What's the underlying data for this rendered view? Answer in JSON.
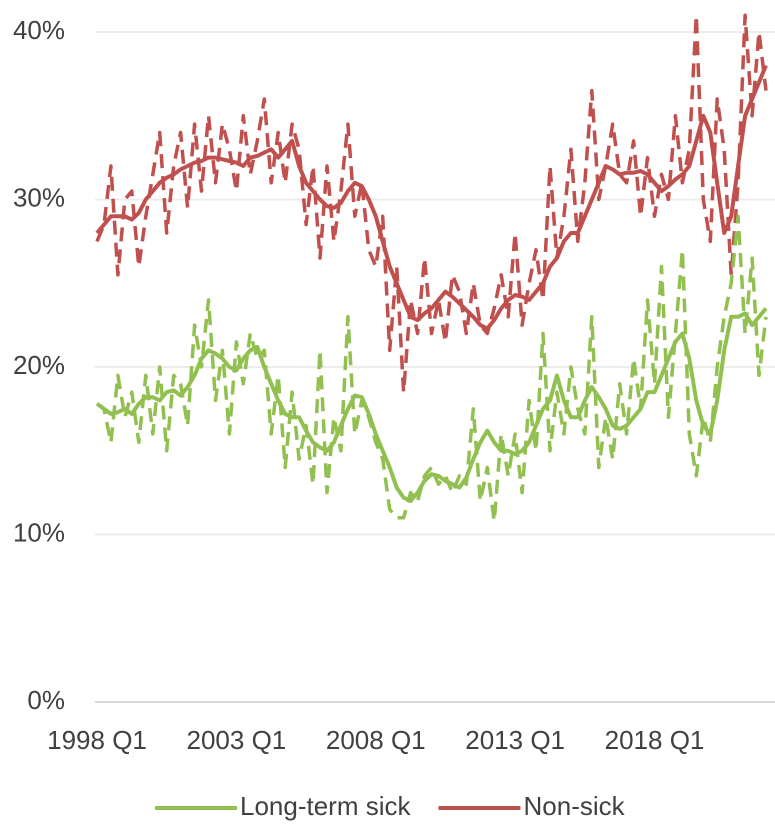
{
  "chart_data": {
    "type": "line",
    "categories": [
      "1998 Q1",
      null,
      null,
      null,
      null,
      null,
      null,
      null,
      null,
      null,
      null,
      null,
      null,
      null,
      null,
      null,
      null,
      null,
      null,
      null,
      "2003 Q1",
      null,
      null,
      null,
      null,
      null,
      null,
      null,
      null,
      null,
      null,
      null,
      null,
      null,
      null,
      null,
      null,
      null,
      null,
      null,
      "2008 Q1",
      null,
      null,
      null,
      null,
      null,
      null,
      null,
      null,
      null,
      null,
      null,
      null,
      null,
      null,
      null,
      null,
      null,
      null,
      null,
      "2013 Q1",
      null,
      null,
      null,
      null,
      null,
      null,
      null,
      null,
      null,
      null,
      null,
      null,
      null,
      null,
      null,
      null,
      null,
      null,
      null,
      "2018 Q1",
      null,
      null,
      null,
      null,
      null,
      null,
      null,
      null,
      null,
      null,
      null,
      null,
      null,
      null,
      null,
      null
    ],
    "ylim": [
      0,
      42
    ],
    "yticks": [
      {
        "value": 0,
        "label": "0%"
      },
      {
        "value": 10,
        "label": "10%"
      },
      {
        "value": 20,
        "label": "20%"
      },
      {
        "value": 30,
        "label": "30%"
      },
      {
        "value": 40,
        "label": "40%"
      }
    ],
    "grid": true,
    "series": [
      {
        "name": "Long-term sick",
        "color": "#92c050",
        "style": "solid",
        "values": [
          17.8,
          17.5,
          17.2,
          17.3,
          17.5,
          17.2,
          17.8,
          18.2,
          18.2,
          18,
          18.5,
          18.6,
          18.3,
          18.8,
          19.5,
          20.5,
          21,
          20.8,
          20.5,
          20,
          19.8,
          20.5,
          21,
          21.2,
          20,
          19,
          18,
          17.2,
          17,
          17,
          16.2,
          15.5,
          15.2,
          15,
          15.5,
          16.5,
          17.5,
          18.3,
          18.2,
          17.2,
          16,
          15,
          14,
          12.8,
          12.2,
          12,
          12.5,
          13.2,
          13.6,
          13.5,
          13.2,
          13,
          12.8,
          13.4,
          14.5,
          15.5,
          16.2,
          15.5,
          15,
          15,
          14.8,
          15,
          15.5,
          16.5,
          17.5,
          18,
          19.5,
          18,
          17,
          17,
          18,
          18.8,
          18.2,
          17.5,
          16.5,
          16.3,
          16.5,
          17,
          17.5,
          18.5,
          18.5,
          19.5,
          20.5,
          21.5,
          22,
          20.5,
          18,
          16.5,
          16,
          18,
          21,
          23,
          23,
          23.2,
          22.5,
          23,
          23.5
        ]
      },
      {
        "name": "Non-sick",
        "color": "#c0504d",
        "style": "solid",
        "values": [
          28,
          28.5,
          29,
          29,
          29,
          28.8,
          29.2,
          30,
          30.5,
          31,
          31.3,
          31.5,
          31.8,
          32,
          32.2,
          32.3,
          32.5,
          32.5,
          32.4,
          32.3,
          32.2,
          32,
          32.5,
          32.6,
          32.8,
          33,
          32.5,
          33,
          33.5,
          32,
          31,
          30.5,
          30,
          29.6,
          29.5,
          29.8,
          30.5,
          31,
          30.8,
          30,
          29,
          27.5,
          26,
          25,
          24,
          23,
          22.8,
          23.2,
          23.5,
          24,
          24.5,
          24.2,
          23.8,
          23.4,
          23,
          22.5,
          22.3,
          22.8,
          23.5,
          24,
          24.3,
          24.2,
          24,
          24.5,
          25,
          26,
          26.5,
          27.5,
          28,
          28,
          29,
          30,
          31,
          32,
          31.8,
          31.5,
          31.6,
          31.6,
          31.7,
          31.5,
          31,
          30.5,
          30.8,
          31.2,
          31.5,
          32,
          33.5,
          35,
          34,
          31,
          28,
          29,
          32,
          35,
          36,
          37,
          38
        ]
      },
      {
        "color": "#92c050",
        "style": "dashed",
        "values": [
          17.8,
          17.5,
          15.5,
          19.5,
          17,
          18.5,
          15.5,
          19.5,
          16,
          20,
          15,
          19.5,
          19,
          16.5,
          22.5,
          20,
          24,
          18,
          21,
          16,
          21.5,
          19,
          22,
          20.5,
          21,
          16,
          19.5,
          14,
          18.5,
          14.5,
          16.5,
          13,
          21,
          12.5,
          17,
          15,
          23,
          16,
          18,
          17,
          15.5,
          14.5,
          11.5,
          11,
          11,
          12.5,
          12,
          13.5,
          14,
          13,
          13.5,
          12.5,
          13.5,
          13,
          17.5,
          12,
          14,
          10.8,
          16,
          13.5,
          16,
          12.5,
          18,
          15,
          22,
          15,
          18.5,
          16,
          20,
          17.5,
          16,
          23,
          14,
          17,
          14.5,
          19,
          16,
          20.5,
          17.5,
          24,
          19,
          26,
          17,
          22,
          27,
          16,
          13.5,
          17,
          15.5,
          20,
          23,
          25,
          29,
          22,
          26.5,
          19.5,
          23
        ]
      },
      {
        "color": "#c0504d",
        "style": "dashed",
        "values": [
          27.5,
          28.5,
          32,
          25.5,
          30,
          30.5,
          26,
          29,
          31.5,
          34,
          28,
          32,
          34,
          29.5,
          34.5,
          30.5,
          35,
          31,
          34.5,
          33,
          30.5,
          35,
          31.5,
          33.5,
          36,
          31,
          34,
          31,
          34.5,
          33,
          28.5,
          32,
          26.5,
          32,
          27.5,
          30.5,
          34.5,
          29,
          31,
          27,
          26,
          29,
          21,
          26,
          18.5,
          24,
          22,
          26.5,
          22,
          24,
          21.5,
          25.5,
          24.5,
          22,
          25,
          22.5,
          22,
          23.5,
          25.5,
          23,
          28,
          22.5,
          25,
          27,
          24,
          32,
          26.5,
          29,
          33,
          27.5,
          31,
          36.5,
          30,
          32,
          34.5,
          31.5,
          31,
          33.5,
          29,
          32.5,
          29,
          31.5,
          30,
          35,
          31,
          33,
          41,
          30,
          27.5,
          36,
          33,
          25.5,
          31,
          41,
          35,
          40,
          36.5
        ]
      }
    ]
  }
}
